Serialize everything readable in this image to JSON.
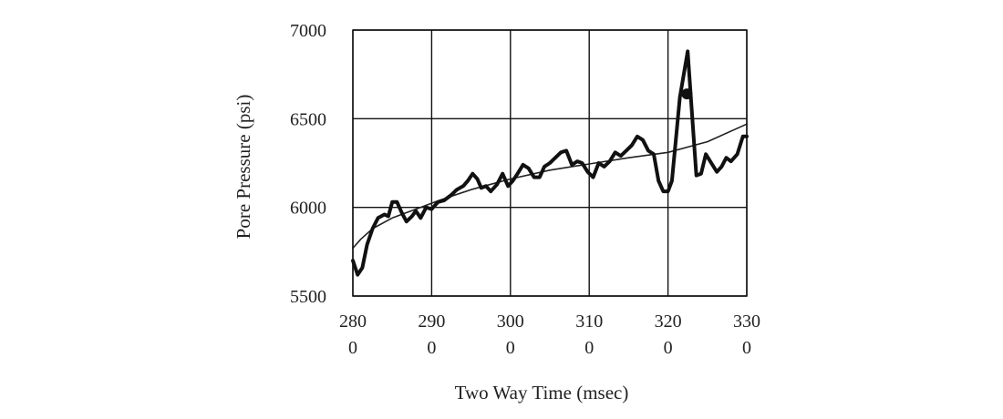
{
  "chart_data": {
    "type": "line",
    "xlabel": "Two Way Time (msec)",
    "ylabel": "Pore Pressure (psi)",
    "xlim": [
      2800,
      3300
    ],
    "ylim": [
      5500,
      7000
    ],
    "grid": true,
    "x_ticks": [
      {
        "value": 2800,
        "line1": "280",
        "line2": "0"
      },
      {
        "value": 2900,
        "line1": "290",
        "line2": "0"
      },
      {
        "value": 3000,
        "line1": "300",
        "line2": "0"
      },
      {
        "value": 3100,
        "line1": "310",
        "line2": "0"
      },
      {
        "value": 3200,
        "line1": "320",
        "line2": "0"
      },
      {
        "value": 3300,
        "line1": "330",
        "line2": "0"
      }
    ],
    "y_ticks": [
      {
        "value": 5500,
        "label": "5500"
      },
      {
        "value": 6000,
        "label": "6000"
      },
      {
        "value": 6500,
        "label": "6500"
      },
      {
        "value": 7000,
        "label": "7000"
      }
    ],
    "series": [
      {
        "style": "thick",
        "color": "#111111",
        "x": [
          2800,
          2806,
          2812,
          2818,
          2825,
          2832,
          2840,
          2845,
          2850,
          2856,
          2862,
          2868,
          2875,
          2880,
          2886,
          2893,
          2900,
          2908,
          2916,
          2925,
          2932,
          2940,
          2946,
          2952,
          2958,
          2963,
          2969,
          2975,
          2983,
          2990,
          2997,
          3003,
          3009,
          3016,
          3023,
          3030,
          3037,
          3043,
          3050,
          3057,
          3064,
          3071,
          3078,
          3085,
          3091,
          3098,
          3105,
          3112,
          3119,
          3126,
          3133,
          3140,
          3147,
          3154,
          3161,
          3168,
          3175,
          3182,
          3188,
          3194,
          3200,
          3205,
          3210,
          3215,
          3220,
          3225,
          3230,
          3236,
          3242,
          3248,
          3255,
          3262,
          3268,
          3274,
          3280,
          3288,
          3295,
          3300
        ],
        "y": [
          5700,
          5620,
          5660,
          5790,
          5880,
          5940,
          5960,
          5950,
          6030,
          6030,
          5970,
          5920,
          5950,
          5980,
          5940,
          6000,
          5990,
          6030,
          6040,
          6070,
          6100,
          6120,
          6150,
          6190,
          6160,
          6110,
          6120,
          6090,
          6130,
          6190,
          6120,
          6150,
          6190,
          6240,
          6220,
          6170,
          6170,
          6230,
          6250,
          6280,
          6310,
          6320,
          6240,
          6260,
          6250,
          6200,
          6170,
          6250,
          6230,
          6260,
          6310,
          6290,
          6320,
          6350,
          6400,
          6380,
          6320,
          6300,
          6150,
          6090,
          6090,
          6150,
          6380,
          6620,
          6750,
          6880,
          6560,
          6180,
          6190,
          6300,
          6250,
          6200,
          6230,
          6280,
          6260,
          6300,
          6400,
          6400
        ]
      },
      {
        "style": "thin",
        "color": "#222222",
        "x": [
          2800,
          2810,
          2825,
          2850,
          2880,
          2910,
          2950,
          3000,
          3050,
          3100,
          3150,
          3200,
          3250,
          3300
        ],
        "y": [
          5770,
          5820,
          5880,
          5940,
          5990,
          6040,
          6100,
          6160,
          6210,
          6245,
          6280,
          6310,
          6370,
          6470
        ]
      }
    ],
    "points": [
      {
        "x": 3224,
        "y": 6640,
        "color": "#111111"
      }
    ]
  }
}
